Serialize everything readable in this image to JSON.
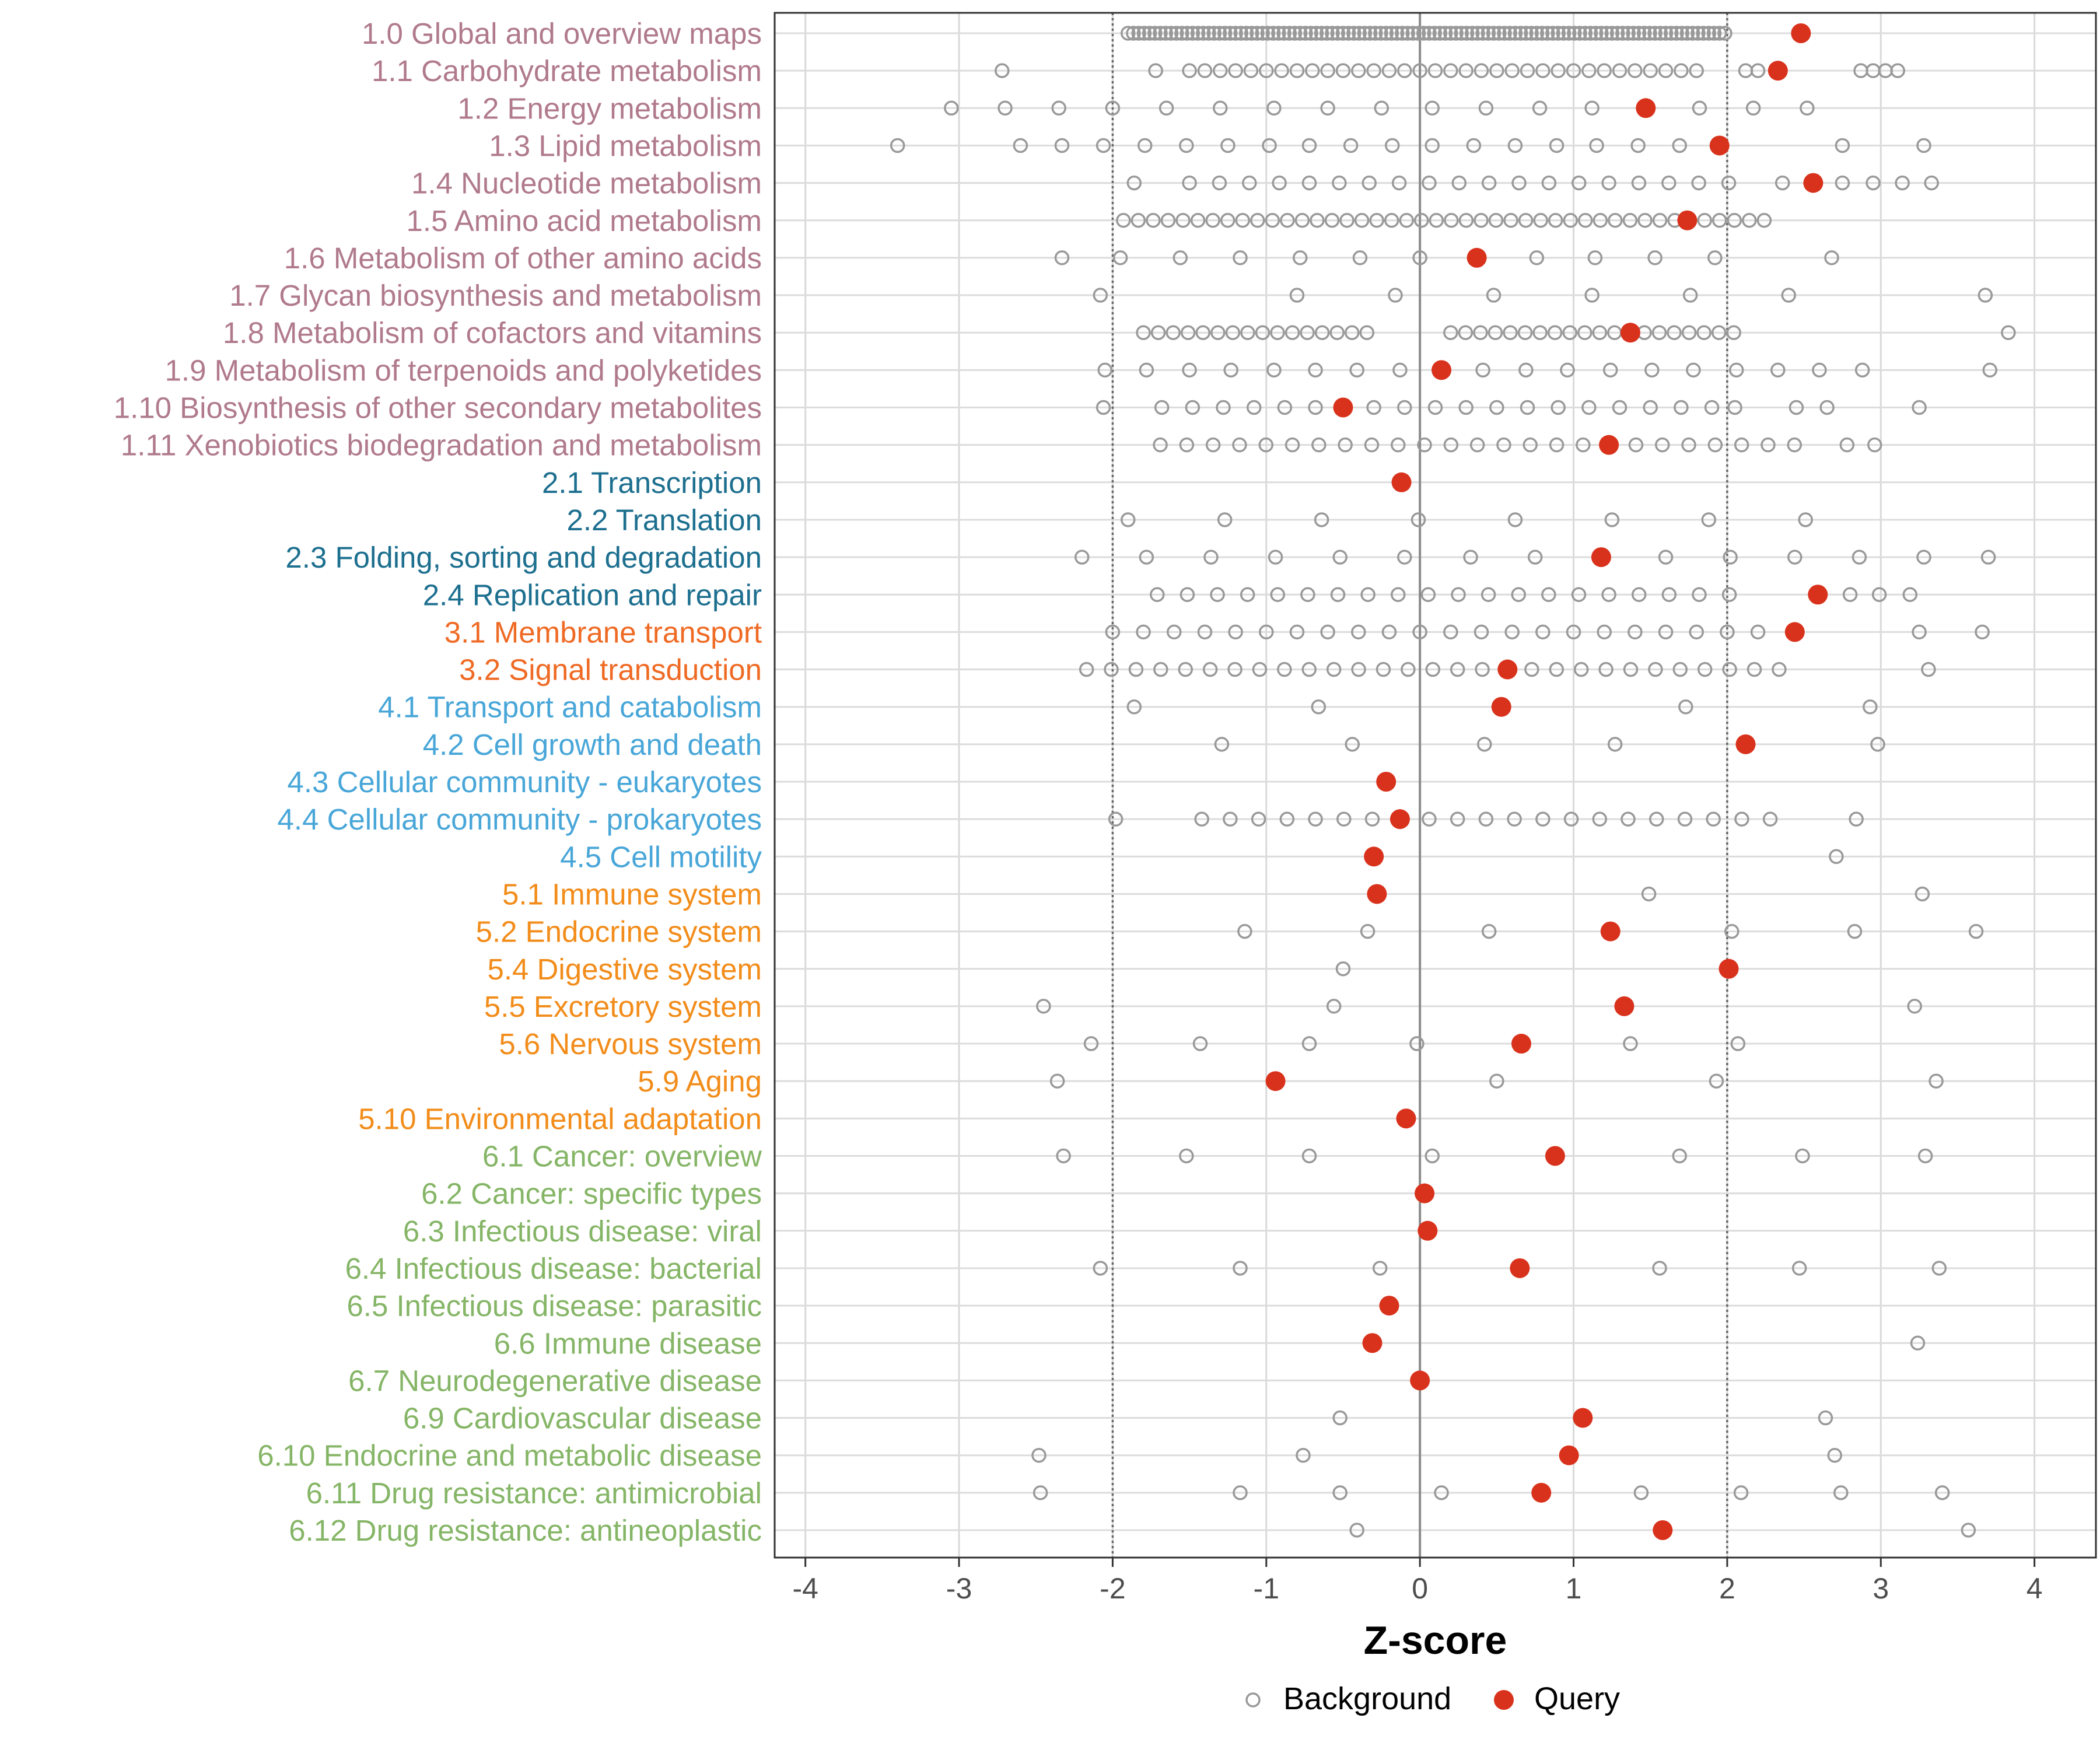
{
  "chart_data": {
    "type": "scatter",
    "xlabel": "Z-score",
    "ylabel": "",
    "xlim": [
      -4.2,
      4.4
    ],
    "x_ticks": [
      -4,
      -3,
      -2,
      -1,
      0,
      1,
      2,
      3,
      4
    ],
    "x_tick_labels": [
      "-4",
      "-3",
      "-2",
      "-1",
      "0",
      "1",
      "2",
      "3",
      "4"
    ],
    "reference_lines": [
      {
        "x": -2,
        "style": "dotted"
      },
      {
        "x": 0,
        "style": "solid"
      },
      {
        "x": 2,
        "style": "dotted"
      }
    ],
    "grid": true,
    "legend_position": "bottom",
    "legend": [
      {
        "name": "Background",
        "color": "#999999",
        "marker": "open-circle"
      },
      {
        "name": "Query",
        "color": "#d9321c",
        "marker": "filled-circle"
      }
    ],
    "group_colors": {
      "1": "#b07a8c",
      "2": "#1d6f8f",
      "3": "#ef6a24",
      "4": "#48a6d8",
      "5": "#f28c1a",
      "6": "#85b566"
    },
    "categories": [
      {
        "label": "1.0 Global and overview maps",
        "group": "1",
        "query": 2.48,
        "background": []
      },
      {
        "label": "1.1 Carbohydrate metabolism",
        "group": "1",
        "query": 2.33,
        "background": []
      },
      {
        "label": "1.2 Energy metabolism",
        "group": "1",
        "query": 1.47,
        "background": [
          -3.05,
          -2.7,
          -2.35,
          -2.0,
          -1.65,
          -1.3,
          -0.95,
          -0.6,
          -0.25,
          0.08,
          0.43,
          0.78,
          1.12,
          1.82,
          2.17,
          2.52
        ]
      },
      {
        "label": "1.3 Lipid metabolism",
        "group": "1",
        "query": 1.95,
        "background": [
          -3.4,
          -2.6,
          -2.33,
          -2.06,
          -1.79,
          -1.52,
          -1.25,
          -0.98,
          -0.72,
          -0.45,
          -0.18,
          0.08,
          0.35,
          0.62,
          0.89,
          1.15,
          1.42,
          1.69,
          2.75,
          3.28
        ]
      },
      {
        "label": "1.4 Nucleotide metabolism",
        "group": "1",
        "query": 2.56,
        "background": []
      },
      {
        "label": "1.5 Amino acid metabolism",
        "group": "1",
        "query": 1.74,
        "background": []
      },
      {
        "label": "1.6 Metabolism of other amino acids",
        "group": "1",
        "query": 0.37,
        "background": [
          -2.33,
          -1.95,
          -1.56,
          -1.17,
          -0.78,
          -0.39,
          0.0,
          0.76,
          1.14,
          1.53,
          1.92,
          2.68
        ]
      },
      {
        "label": "1.7 Glycan biosynthesis and metabolism",
        "group": "1",
        "query": null,
        "background": [
          -2.08,
          -0.8,
          -0.16,
          0.48,
          1.12,
          1.76,
          2.4,
          3.68
        ]
      },
      {
        "label": "1.8 Metabolism of cofactors and vitamins",
        "group": "1",
        "query": 1.37,
        "background": []
      },
      {
        "label": "1.9 Metabolism of terpenoids and polyketides",
        "group": "1",
        "query": 0.14,
        "background": [
          -2.05,
          -1.78,
          -1.5,
          -1.23,
          -0.95,
          -0.68,
          -0.41,
          -0.13,
          0.41,
          0.69,
          0.96,
          1.24,
          1.51,
          1.78,
          2.06,
          2.33,
          2.6,
          2.88,
          3.71
        ]
      },
      {
        "label": "1.10 Biosynthesis of other secondary metabolites",
        "group": "1",
        "query": -0.5,
        "background": [
          -2.06,
          -1.68,
          -1.48,
          -1.28,
          -1.08,
          -0.88,
          -0.68,
          -0.3,
          -0.1,
          0.1,
          0.3,
          0.5,
          0.7,
          0.9,
          1.1,
          1.3,
          1.5,
          1.7,
          1.9,
          2.05,
          2.45,
          2.65,
          3.25
        ]
      },
      {
        "label": "1.11 Xenobiotics biodegradation and metabolism",
        "group": "1",
        "query": 1.23,
        "background": []
      },
      {
        "label": "2.1 Transcription",
        "group": "2",
        "query": -0.12,
        "background": []
      },
      {
        "label": "2.2 Translation",
        "group": "2",
        "query": null,
        "background": [
          -1.9,
          -1.27,
          -0.64,
          -0.01,
          0.62,
          1.25,
          1.88,
          2.51
        ]
      },
      {
        "label": "2.3 Folding, sorting and degradation",
        "group": "2",
        "query": 1.18,
        "background": [
          -2.2,
          -1.78,
          -1.36,
          -0.94,
          -0.52,
          -0.1,
          0.33,
          0.75,
          1.6,
          2.02,
          2.44,
          2.86,
          3.28,
          3.7
        ]
      },
      {
        "label": "2.4 Replication and repair",
        "group": "2",
        "query": 2.59,
        "background": []
      },
      {
        "label": "3.1 Membrane transport",
        "group": "3",
        "query": 2.44,
        "background": []
      },
      {
        "label": "3.2 Signal transduction",
        "group": "3",
        "query": 0.57,
        "background": []
      },
      {
        "label": "4.1 Transport and catabolism",
        "group": "4",
        "query": 0.53,
        "background": [
          -1.86,
          -0.66,
          1.73,
          2.93
        ]
      },
      {
        "label": "4.2 Cell growth and death",
        "group": "4",
        "query": 2.12,
        "background": [
          -1.29,
          -0.44,
          0.42,
          1.27,
          2.98
        ]
      },
      {
        "label": "4.3 Cellular community - eukaryotes",
        "group": "4",
        "query": -0.22,
        "background": []
      },
      {
        "label": "4.4 Cellular community - prokaryotes",
        "group": "4",
        "query": -0.13,
        "background": []
      },
      {
        "label": "4.5 Cell motility",
        "group": "4",
        "query": -0.3,
        "background": [
          2.71
        ]
      },
      {
        "label": "5.1 Immune system",
        "group": "5",
        "query": -0.28,
        "background": [
          1.49,
          3.27
        ]
      },
      {
        "label": "5.2 Endocrine system",
        "group": "5",
        "query": 1.24,
        "background": [
          -1.14,
          -0.34,
          0.45,
          2.03,
          2.83,
          3.62
        ]
      },
      {
        "label": "5.4 Digestive system",
        "group": "5",
        "query": 2.01,
        "background": [
          -0.5,
          2.01
        ]
      },
      {
        "label": "5.5 Excretory system",
        "group": "5",
        "query": 1.33,
        "background": [
          -2.45,
          -0.56,
          3.22
        ]
      },
      {
        "label": "5.6 Nervous system",
        "group": "5",
        "query": 0.66,
        "background": [
          -2.14,
          -1.43,
          -0.72,
          -0.02,
          1.37,
          2.07
        ]
      },
      {
        "label": "5.9 Aging",
        "group": "5",
        "query": -0.94,
        "background": [
          -2.36,
          0.5,
          1.93,
          3.36
        ]
      },
      {
        "label": "5.10 Environmental adaptation",
        "group": "5",
        "query": -0.09,
        "background": []
      },
      {
        "label": "6.1 Cancer: overview",
        "group": "6",
        "query": 0.88,
        "background": [
          -2.32,
          -1.52,
          -0.72,
          0.08,
          1.69,
          2.49,
          3.29
        ]
      },
      {
        "label": "6.2 Cancer: specific types",
        "group": "6",
        "query": 0.03,
        "background": []
      },
      {
        "label": "6.3 Infectious disease: viral",
        "group": "6",
        "query": 0.05,
        "background": []
      },
      {
        "label": "6.4 Infectious disease: bacterial",
        "group": "6",
        "query": 0.65,
        "background": [
          -2.08,
          -1.17,
          -0.26,
          1.56,
          2.47,
          3.38
        ]
      },
      {
        "label": "6.5 Infectious disease: parasitic",
        "group": "6",
        "query": -0.2,
        "background": []
      },
      {
        "label": "6.6 Immune disease",
        "group": "6",
        "query": -0.31,
        "background": [
          3.24
        ]
      },
      {
        "label": "6.7 Neurodegenerative disease",
        "group": "6",
        "query": 0.0,
        "background": []
      },
      {
        "label": "6.9 Cardiovascular disease",
        "group": "6",
        "query": 1.06,
        "background": [
          -0.52,
          2.64
        ]
      },
      {
        "label": "6.10 Endocrine and metabolic disease",
        "group": "6",
        "query": 0.97,
        "background": [
          -2.48,
          -0.76,
          2.7
        ]
      },
      {
        "label": "6.11 Drug resistance: antimicrobial",
        "group": "6",
        "query": 0.79,
        "background": [
          -2.47,
          -1.17,
          -0.52,
          0.14,
          1.44,
          2.09,
          2.74,
          3.4
        ]
      },
      {
        "label": "6.12 Drug resistance: antineoplastic",
        "group": "6",
        "query": 1.58,
        "background": [
          -0.41,
          3.57
        ]
      }
    ],
    "background_ranges": [
      {
        "label": "1.0 Global and overview maps",
        "from": -1.9,
        "to": 2.0,
        "step": 0.035
      },
      {
        "label": "1.1 Carbohydrate metabolism",
        "from": -1.5,
        "to": 1.85,
        "step": 0.1,
        "extra": [
          -2.72,
          -1.72,
          2.12,
          2.2,
          2.87,
          2.95,
          3.03,
          3.11
        ]
      },
      {
        "label": "1.4 Nucleotide metabolism",
        "from": -1.5,
        "to": 2.15,
        "step": 0.195,
        "extra": [
          -1.86,
          2.36,
          2.55,
          2.75,
          2.95,
          3.14,
          3.33
        ]
      },
      {
        "label": "1.5 Amino acid metabolism",
        "from": -1.93,
        "to": 2.3,
        "step": 0.097
      },
      {
        "label": "1.8 Metabolism of cofactors and vitamins",
        "from": -1.8,
        "to": -0.25,
        "step": 0.097,
        "extra": []
      },
      {
        "label": "1.8 Metabolism of cofactors and vitamins",
        "from": 0.2,
        "to": 2.05,
        "step": 0.097,
        "extra": [
          3.83
        ]
      },
      {
        "label": "1.11 Xenobiotics biodegradation and metabolism",
        "from": -1.69,
        "to": 2.44,
        "step": 0.172,
        "extra": [
          2.78,
          2.96
        ]
      },
      {
        "label": "2.4 Replication and repair",
        "from": -1.71,
        "to": 2.2,
        "step": 0.196,
        "extra": [
          2.8,
          2.99,
          3.19
        ]
      },
      {
        "label": "3.1 Membrane transport",
        "from": -2.0,
        "to": 2.25,
        "step": 0.2,
        "extra": [
          3.25,
          3.66
        ]
      },
      {
        "label": "3.2 Signal transduction",
        "from": -2.17,
        "to": 2.35,
        "step": 0.161,
        "extra": [
          3.31
        ]
      },
      {
        "label": "4.4 Cellular community - prokaryotes",
        "from": -1.42,
        "to": 2.28,
        "step": 0.185,
        "extra": [
          -1.98,
          2.84
        ]
      }
    ]
  }
}
